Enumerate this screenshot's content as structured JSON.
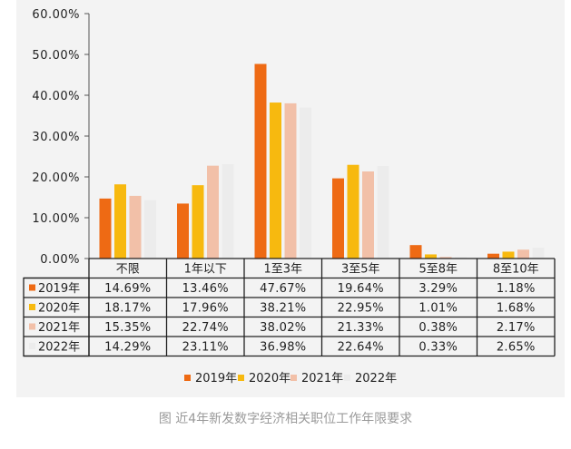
{
  "chart_data": {
    "type": "bar",
    "categories": [
      "不限",
      "1年以下",
      "1至3年",
      "3至5年",
      "5至8年",
      "8至10年"
    ],
    "series": [
      {
        "name": "2019年",
        "color": "#ee6a14",
        "values": [
          14.69,
          13.46,
          47.67,
          19.64,
          3.29,
          1.18
        ],
        "labels": [
          "14.69%",
          "13.46%",
          "47.67%",
          "19.64%",
          "3.29%",
          "1.18%"
        ]
      },
      {
        "name": "2020年",
        "color": "#f7b90f",
        "values": [
          18.17,
          17.96,
          38.21,
          22.95,
          1.01,
          1.68
        ],
        "labels": [
          "18.17%",
          "17.96%",
          "38.21%",
          "22.95%",
          "1.01%",
          "1.68%"
        ]
      },
      {
        "name": "2021年",
        "color": "#f2c0a8",
        "values": [
          15.35,
          22.74,
          38.02,
          21.33,
          0.38,
          2.17
        ],
        "labels": [
          "15.35%",
          "22.74%",
          "38.02%",
          "21.33%",
          "0.38%",
          "2.17%"
        ]
      },
      {
        "name": "2022年",
        "color": "#ececec",
        "values": [
          14.29,
          23.11,
          36.98,
          22.64,
          0.33,
          2.65
        ],
        "labels": [
          "14.29%",
          "23.11%",
          "36.98%",
          "22.64%",
          "0.33%",
          "2.65%"
        ]
      }
    ],
    "ylim": [
      0,
      60
    ],
    "yticks": [
      "0.00%",
      "10.00%",
      "20.00%",
      "30.00%",
      "40.00%",
      "50.00%",
      "60.00%"
    ],
    "legend_position": "bottom",
    "has_data_table": true,
    "grid": false
  },
  "caption": "图 近4年新发数字经济相关职位工作年限要求"
}
